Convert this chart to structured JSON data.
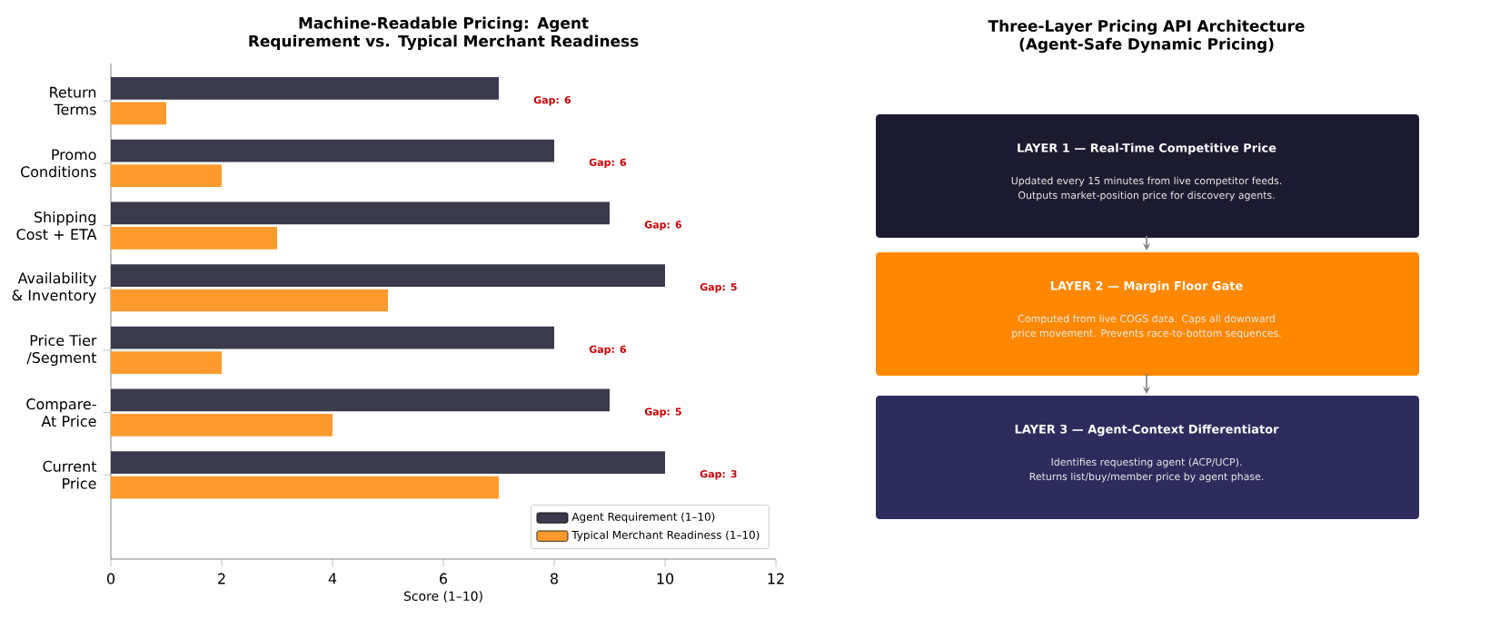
{
  "chart_data": [
    {
      "type": "bar",
      "orientation": "horizontal",
      "title": "Machine-Readable Pricing: Agent Requirement vs. Typical Merchant Readiness",
      "xlabel": "Score (1–10)",
      "categories": [
        "Return Terms",
        "Promo Conditions",
        "Shipping Cost + ETA",
        "Availability & Inventory",
        "Price Tier /Segment",
        "Compare-At Price",
        "Current Price"
      ],
      "series": [
        {
          "name": "Agent Requirement (1–10)",
          "color": "#3b3a4c",
          "values": [
            7,
            8,
            9,
            10,
            8,
            9,
            10
          ]
        },
        {
          "name": "Typical Merchant Readiness (1–10)",
          "color": "#ff9a2e",
          "values": [
            1,
            2,
            3,
            5,
            2,
            4,
            7
          ]
        }
      ],
      "xlim": [
        0,
        12
      ],
      "xticks": [
        0,
        2,
        4,
        6,
        8,
        10,
        12
      ],
      "legend": "bottom right",
      "annotations": [
        "Gap: 6",
        "Gap: 6",
        "Gap: 6",
        "Gap: 5",
        "Gap: 6",
        "Gap: 5",
        "Gap: 3"
      ]
    },
    {
      "type": "other",
      "title": "Three-Layer Pricing API Architecture (Agent-Safe Dynamic Pricing)",
      "colors": [
        "#1c1b31",
        "#ff8800",
        "#2e2c5c"
      ],
      "annotations": [
        "LAYER 1 — Real-Time Competitive Price",
        "Updated every 15 minutes from live competitor feeds.",
        "Outputs market-position price for discovery agents.",
        "LAYER 2 — Margin Floor Gate",
        "Computed from live COGS data. Caps all downward",
        "price movement. Prevents race-to-bottom sequences.",
        "LAYER 3 — Agent-Context Differentiator",
        "Identifies requesting agent (ACP/UCP).",
        "Returns list/buy/member price by agent phase."
      ]
    }
  ]
}
